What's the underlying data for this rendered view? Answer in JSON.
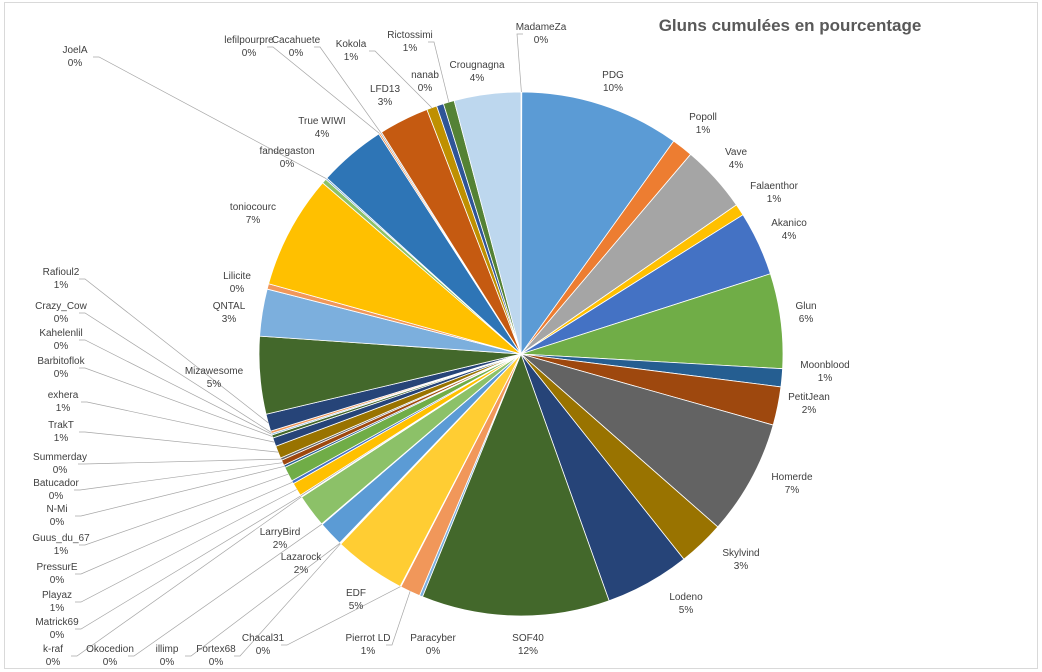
{
  "chart_data": {
    "type": "pie",
    "title": "Gluns cumulées en pourcentage",
    "labels": [
      "MadameZa",
      "PDG",
      "Popoll",
      "Vave",
      "Falaenthor",
      "Akanico",
      "Glun",
      "Moonblood",
      "PetitJean",
      "Homerde",
      "Skylvind",
      "Lodeno",
      "SOF40",
      "Paracyber",
      "Pierrot LD",
      "Chacal31",
      "EDF",
      "Fortex68",
      "illimp",
      "Lazarock",
      "Okocedion",
      "LarryBird",
      "k-raf",
      "Matrick69",
      "Playaz",
      "PressurE",
      "Guus_du_67",
      "N-Mi",
      "Batucador",
      "Summerday",
      "TrakT",
      "exhera",
      "Barbitoflok",
      "Kahelenlil",
      "Crazy_Cow",
      "Rafioul2",
      "Mizawesome",
      "QNTAL",
      "Lilicite",
      "toniocourc",
      "fandegaston",
      "JoelA",
      "True WIWI",
      "lefilpourpre",
      "Cacahuete",
      "LFD13",
      "Kokola",
      "nanab",
      "Rictossimi",
      "Crougnagna"
    ],
    "values": [
      0.05,
      10.2,
      1.35,
      4.3,
      0.75,
      4.1,
      6.05,
      1.15,
      2.45,
      7.35,
      2.95,
      5.4,
      12.0,
      0.2,
      1.3,
      0.05,
      4.6,
      0.05,
      0.05,
      1.6,
      0.05,
      2.1,
      0.05,
      0.1,
      0.85,
      0.2,
      0.95,
      0.15,
      0.35,
      0.15,
      0.8,
      0.55,
      0.2,
      0.1,
      0.15,
      1.1,
      4.95,
      3.0,
      0.35,
      7.25,
      0.3,
      0.1,
      4.3,
      0.1,
      0.1,
      3.2,
      0.65,
      0.45,
      0.7,
      4.25
    ],
    "pct_labels": [
      "0%",
      "10%",
      "1%",
      "4%",
      "1%",
      "4%",
      "6%",
      "1%",
      "2%",
      "7%",
      "3%",
      "5%",
      "12%",
      "0%",
      "1%",
      "0%",
      "5%",
      "0%",
      "0%",
      "2%",
      "0%",
      "2%",
      "0%",
      "0%",
      "1%",
      "0%",
      "1%",
      "0%",
      "0%",
      "0%",
      "1%",
      "1%",
      "0%",
      "0%",
      "0%",
      "1%",
      "5%",
      "3%",
      "0%",
      "7%",
      "0%",
      "0%",
      "4%",
      "0%",
      "0%",
      "3%",
      "1%",
      "0%",
      "1%",
      "4%"
    ],
    "colors": [
      "#5b9bd5",
      "#5b9bd5",
      "#ed7d31",
      "#a5a5a5",
      "#ffc000",
      "#4472c4",
      "#70ad47",
      "#255e91",
      "#9e480e",
      "#636363",
      "#997300",
      "#264478",
      "#43682b",
      "#7cafdd",
      "#f1975a",
      "#b7b7b7",
      "#ffcd33",
      "#698ed0",
      "#8cc168",
      "#5b9bd5",
      "#2e75b6",
      "#8cc168",
      "#ed7d31",
      "#a5a5a5",
      "#ffc000",
      "#4472c4",
      "#70ad47",
      "#255e91",
      "#9e480e",
      "#636363",
      "#997300",
      "#264478",
      "#43682b",
      "#7cafdd",
      "#f1975a",
      "#264478",
      "#43682b",
      "#7cafdd",
      "#f1975a",
      "#ffc000",
      "#8cc168",
      "#5b9bd5",
      "#2e75b6",
      "#ed7d31",
      "#a5a5a5",
      "#c55a11",
      "#bf9000",
      "#2f5597",
      "#548235",
      "#bdd7ee"
    ]
  }
}
